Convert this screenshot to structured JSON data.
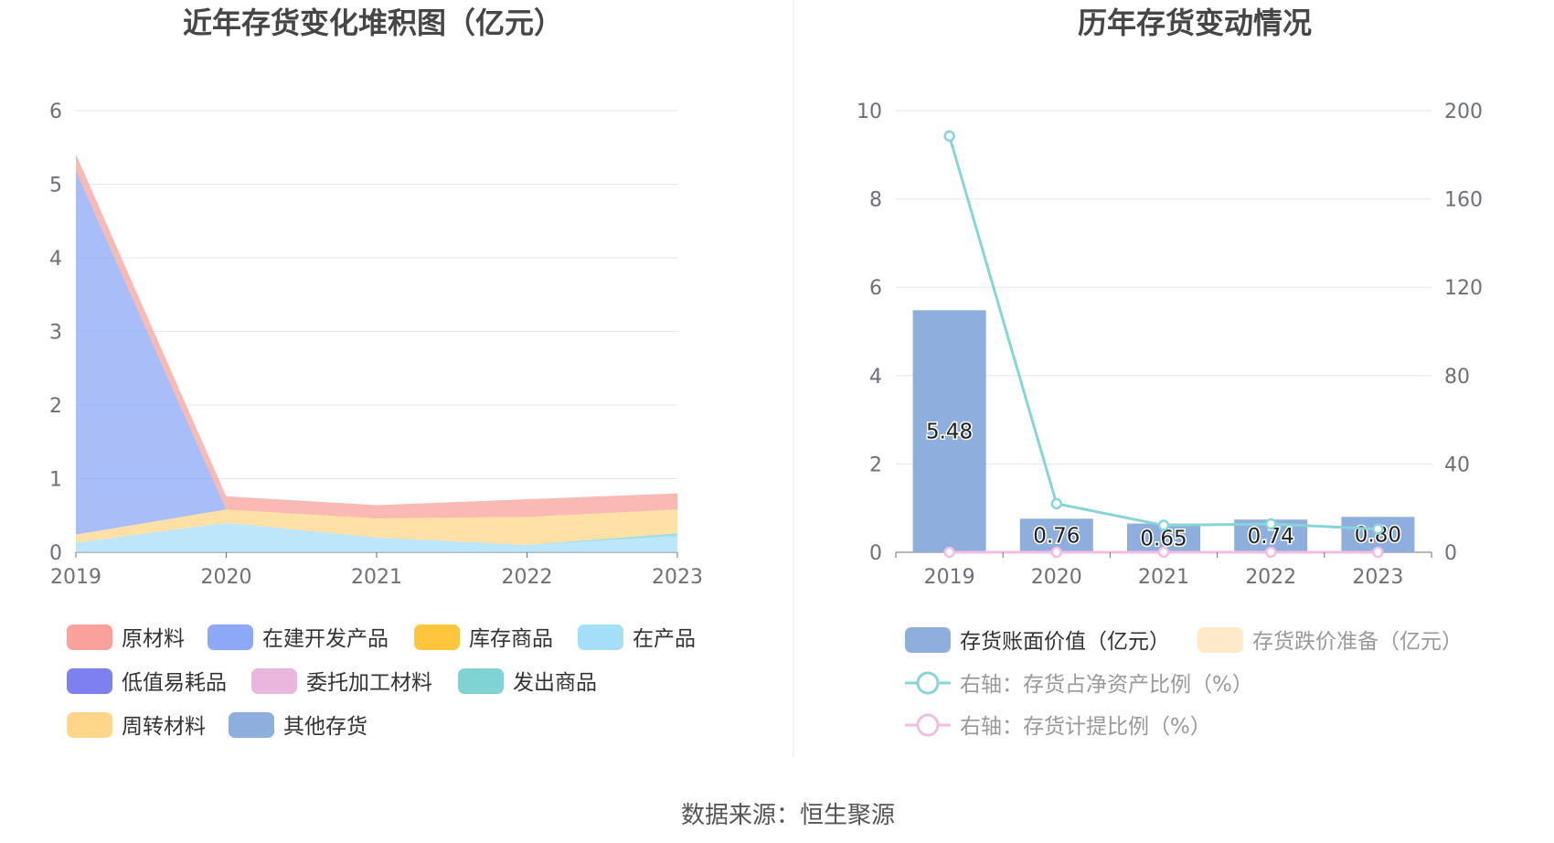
{
  "source_prefix": "数据来源：",
  "source_name": "恒生聚源",
  "chart_data": [
    {
      "type": "area",
      "title": "近年存货变化堆积图（亿元）",
      "categories": [
        "2019",
        "2020",
        "2021",
        "2022",
        "2023"
      ],
      "ylim": [
        0,
        6
      ],
      "yticks": [
        "0",
        "1",
        "2",
        "3",
        "4",
        "5",
        "6"
      ],
      "stacked": true,
      "grid": true,
      "legend_position": "bottom",
      "series": [
        {
          "name": "原材料",
          "color": "#f9a19a",
          "values": [
            0.22,
            0.18,
            0.18,
            0.24,
            0.22
          ]
        },
        {
          "name": "在建开发产品",
          "color": "#8ca8f7",
          "values": [
            4.95,
            0.0,
            0.0,
            0.0,
            0.0
          ]
        },
        {
          "name": "库存商品",
          "color": "#ffc53d",
          "values": [
            0.0,
            0.0,
            0.0,
            0.0,
            0.0
          ]
        },
        {
          "name": "在产品",
          "color": "#a5def7",
          "values": [
            0.13,
            0.4,
            0.2,
            0.1,
            0.22
          ]
        },
        {
          "name": "低值易耗品",
          "color": "#7e7ff1",
          "values": [
            0.0,
            0.0,
            0.0,
            0.0,
            0.0
          ]
        },
        {
          "name": "委托加工材料",
          "color": "#e9b7de",
          "values": [
            0.0,
            0.0,
            0.0,
            0.0,
            0.0
          ]
        },
        {
          "name": "发出商品",
          "color": "#7fd4d2",
          "values": [
            0.0,
            0.0,
            0.0,
            0.0,
            0.04
          ]
        },
        {
          "name": "周转材料",
          "color": "#ffd68a",
          "values": [
            0.11,
            0.18,
            0.26,
            0.38,
            0.32
          ]
        },
        {
          "name": "其他存货",
          "color": "#8eaedd",
          "values": [
            0.0,
            0.0,
            0.0,
            0.0,
            0.0
          ]
        }
      ]
    },
    {
      "type": "bar",
      "title": "历年存货变动情况",
      "categories": [
        "2019",
        "2020",
        "2021",
        "2022",
        "2023"
      ],
      "ylim": [
        0,
        10
      ],
      "yticks": [
        "0",
        "2",
        "4",
        "6",
        "8",
        "10"
      ],
      "y2lim": [
        0,
        200
      ],
      "y2ticks": [
        "0",
        "40",
        "80",
        "120",
        "160",
        "200"
      ],
      "grid": true,
      "legend_position": "bottom",
      "bars": [
        {
          "name": "存货账面价值（亿元）",
          "color": "#8eaedd",
          "values": [
            5.48,
            0.76,
            0.65,
            0.74,
            0.8
          ],
          "labels": [
            "5.48",
            "0.76",
            "0.65",
            "0.74",
            "0.80"
          ]
        },
        {
          "name": "存货跌价准备（亿元）",
          "color": "#ffe9c8",
          "values": [
            0,
            0,
            0,
            0,
            0
          ]
        }
      ],
      "lines": [
        {
          "name": "右轴：存货占净资产比例（%）",
          "color": "#86d5d8",
          "values": [
            188.5,
            22.0,
            12.2,
            12.8,
            10.5
          ]
        },
        {
          "name": "右轴：存货计提比例（%）",
          "color": "#f1bde2",
          "values": [
            0,
            0,
            0,
            0,
            0
          ]
        }
      ]
    }
  ]
}
